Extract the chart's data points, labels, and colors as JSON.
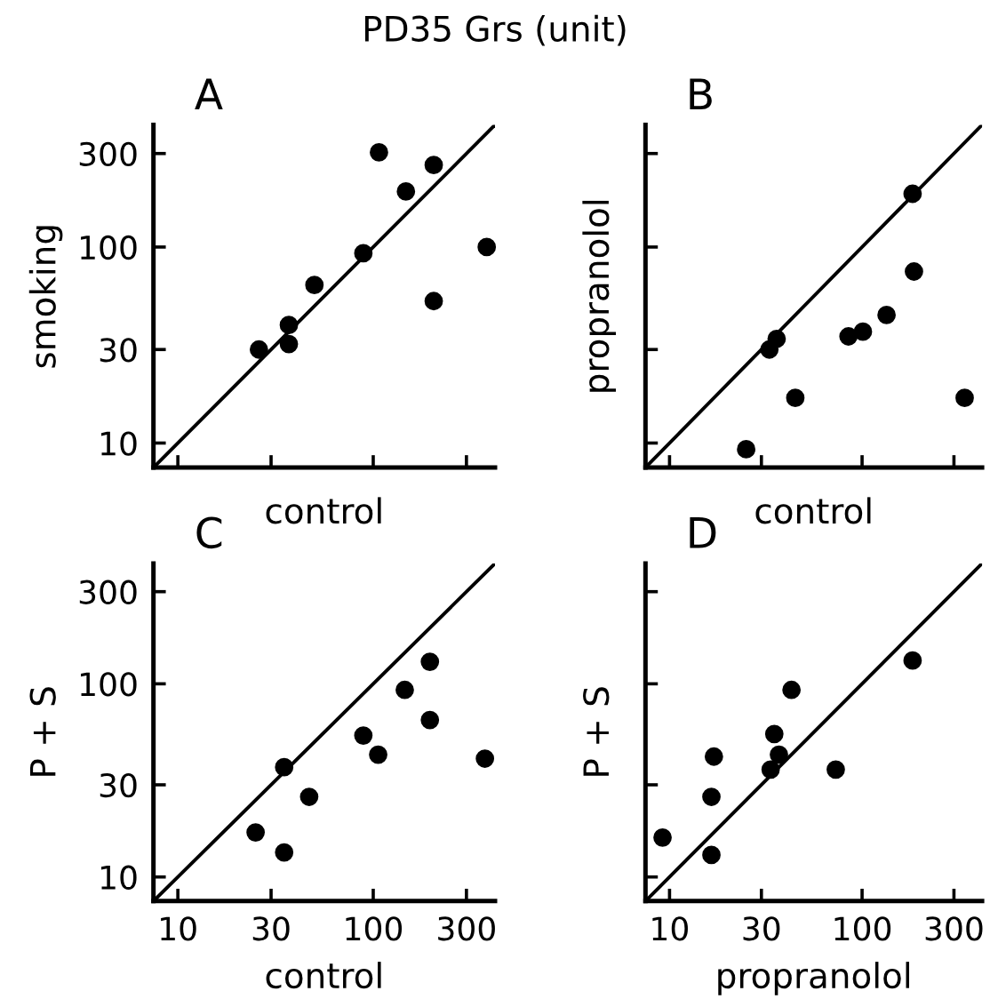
{
  "chart_data": [
    {
      "type": "scatter",
      "title": "PD35 Grs (unit)",
      "annotations": [
        "A"
      ],
      "xlabel": "control",
      "ylabel": "smoking",
      "log": "xy",
      "xlim": [
        7.5,
        420
      ],
      "ylim": [
        7.5,
        420
      ],
      "xticks": [
        10,
        30,
        100,
        300
      ],
      "yticks": [
        10,
        30,
        100,
        300
      ],
      "tick_labels": "y",
      "grid": false,
      "legend": false,
      "marker": "circle",
      "series": [
        {
          "color": "#000000",
          "x": [
            26,
            37,
            37,
            50,
            89,
            107,
            147,
            204,
            204,
            381
          ],
          "values": [
            30,
            32,
            40,
            64,
            93,
            304,
            192,
            262,
            53,
            100
          ]
        },
        {
          "type": "line",
          "color": "#000000",
          "marker": "none",
          "line_style": "solid",
          "x": [
            7.5,
            420
          ],
          "values": [
            7.5,
            420
          ]
        }
      ]
    },
    {
      "type": "scatter",
      "annotations": [
        "B"
      ],
      "xlabel": "control",
      "ylabel": "propranolol",
      "log": "xy",
      "xlim": [
        7.5,
        420
      ],
      "ylim": [
        7.5,
        420
      ],
      "xticks": [
        10,
        30,
        100,
        300
      ],
      "yticks": [
        10,
        30,
        100,
        300
      ],
      "tick_labels": false,
      "grid": false,
      "legend": false,
      "marker": "circle",
      "series": [
        {
          "color": "#000000",
          "x": [
            25,
            33,
            36,
            45,
            85,
            101,
            134,
            186,
            183,
            341
          ],
          "values": [
            9.3,
            30,
            34,
            17,
            35,
            37,
            45,
            75,
            187,
            17
          ]
        },
        {
          "type": "line",
          "color": "#000000",
          "marker": "none",
          "line_style": "solid",
          "x": [
            7.5,
            420
          ],
          "values": [
            7.5,
            420
          ]
        }
      ]
    },
    {
      "type": "scatter",
      "annotations": [
        "C"
      ],
      "xlabel": "control",
      "ylabel": "P + S",
      "log": "xy",
      "xlim": [
        7.5,
        420
      ],
      "ylim": [
        7.5,
        420
      ],
      "xticks": [
        10,
        30,
        100,
        300
      ],
      "yticks": [
        10,
        30,
        100,
        300
      ],
      "grid": false,
      "legend": false,
      "marker": "circle",
      "series": [
        {
          "color": "#000000",
          "x": [
            25,
            35,
            35,
            47,
            89,
            106,
            145,
            195,
            195,
            373
          ],
          "values": [
            17,
            37,
            13.4,
            26,
            54,
            43,
            93,
            130,
            65,
            41
          ]
        },
        {
          "type": "line",
          "color": "#000000",
          "marker": "none",
          "line_style": "solid",
          "x": [
            7.5,
            420
          ],
          "values": [
            7.5,
            420
          ]
        }
      ]
    },
    {
      "type": "scatter",
      "annotations": [
        "D"
      ],
      "xlabel": "propranolol",
      "ylabel": "P + S",
      "log": "xy",
      "xlim": [
        7.5,
        420
      ],
      "ylim": [
        7.5,
        420
      ],
      "xticks": [
        10,
        30,
        100,
        300
      ],
      "yticks": [
        10,
        30,
        100,
        300
      ],
      "tick_labels": "x",
      "grid": false,
      "legend": false,
      "marker": "circle",
      "series": [
        {
          "color": "#000000",
          "x": [
            9.2,
            16.5,
            16.5,
            17,
            33.5,
            35,
            37,
            43,
            73,
            183
          ],
          "values": [
            16,
            13,
            26,
            42,
            36,
            55,
            43,
            93,
            36,
            132
          ]
        },
        {
          "type": "line",
          "color": "#000000",
          "marker": "none",
          "line_style": "solid",
          "x": [
            7.5,
            420
          ],
          "values": [
            7.5,
            420
          ]
        }
      ]
    }
  ]
}
